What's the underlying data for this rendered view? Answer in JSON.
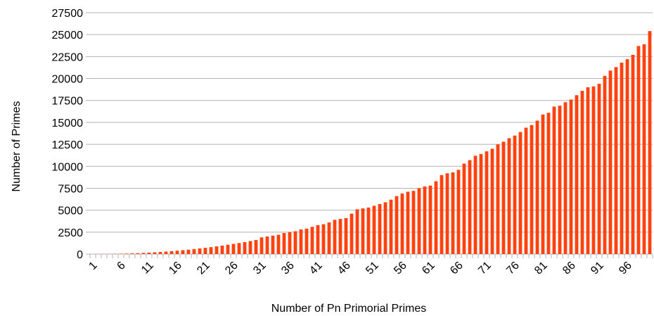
{
  "chart_data": {
    "type": "bar",
    "x_label": "Number of Pn Primorial Primes",
    "y_label": "Number of Primes",
    "categories": [
      "1",
      null,
      null,
      null,
      null,
      "6",
      null,
      null,
      null,
      null,
      "11",
      null,
      null,
      null,
      null,
      "16",
      null,
      null,
      null,
      null,
      "21",
      null,
      null,
      null,
      null,
      "26",
      null,
      null,
      null,
      null,
      "31",
      null,
      null,
      null,
      null,
      "36",
      null,
      null,
      null,
      null,
      "41",
      null,
      null,
      null,
      null,
      "46",
      null,
      null,
      null,
      null,
      "51",
      null,
      null,
      null,
      null,
      "56",
      null,
      null,
      null,
      null,
      "61",
      null,
      null,
      null,
      null,
      "66",
      null,
      null,
      null,
      null,
      "71",
      null,
      null,
      null,
      null,
      "76",
      null,
      null,
      null,
      null,
      "81",
      null,
      null,
      null,
      null,
      "86",
      null,
      null,
      null,
      null,
      "91",
      null,
      null,
      null,
      null,
      "96",
      null,
      null,
      null,
      null
    ],
    "values": [
      2,
      5,
      10,
      17,
      28,
      41,
      58,
      77,
      100,
      129,
      160,
      197,
      238,
      281,
      328,
      381,
      440,
      500,
      568,
      639,
      712,
      791,
      874,
      963,
      1060,
      1160,
      1260,
      1360,
      1480,
      1600,
      1900,
      2000,
      2100,
      2200,
      2400,
      2500,
      2600,
      2800,
      2900,
      3100,
      3300,
      3400,
      3600,
      3900,
      4000,
      4100,
      4600,
      5100,
      5200,
      5300,
      5500,
      5700,
      5900,
      6200,
      6600,
      6900,
      7100,
      7200,
      7500,
      7700,
      7800,
      8300,
      9000,
      9200,
      9300,
      9600,
      10300,
      10700,
      11200,
      11400,
      11700,
      12000,
      12500,
      12800,
      13200,
      13500,
      13900,
      14400,
      14700,
      15200,
      15900,
      16100,
      16800,
      16900,
      17300,
      17600,
      18100,
      18600,
      19000,
      19100,
      19400,
      20300,
      20900,
      21300,
      21800,
      22200,
      22700,
      23700,
      23900,
      25400
    ],
    "color": "#ff420e",
    "ylim": [
      0,
      27500
    ],
    "yticks": [
      0,
      2500,
      5000,
      7500,
      10000,
      12500,
      15000,
      17500,
      20000,
      22500,
      25000,
      27500
    ],
    "grid": true
  }
}
